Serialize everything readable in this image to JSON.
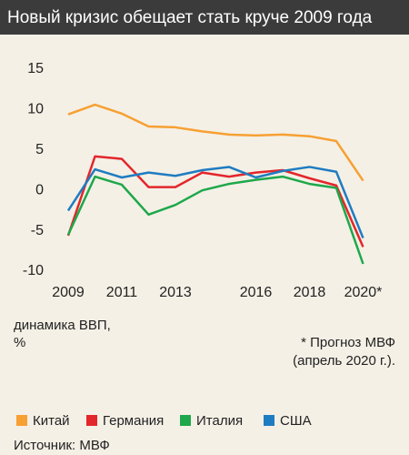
{
  "chart_data": {
    "type": "line",
    "title": "Новый кризис обещает стать круче 2009 года",
    "categories": [
      "2009",
      null,
      "2011",
      null,
      "2013",
      null,
      null,
      "2016",
      null,
      "2018",
      null,
      "2020*"
    ],
    "series": [
      {
        "name": "Китай",
        "color": "#f7a033",
        "values": [
          9.4,
          10.6,
          9.5,
          7.9,
          7.8,
          7.3,
          6.9,
          6.8,
          6.9,
          6.7,
          6.1,
          1.2
        ]
      },
      {
        "name": "Германия",
        "color": "#e3262b",
        "values": [
          -5.6,
          4.2,
          3.9,
          0.4,
          0.4,
          2.2,
          1.7,
          2.2,
          2.5,
          1.5,
          0.6,
          -7.0
        ]
      },
      {
        "name": "Италия",
        "color": "#1ea84b",
        "values": [
          -5.5,
          1.7,
          0.7,
          -3.0,
          -1.8,
          0.0,
          0.8,
          1.3,
          1.7,
          0.8,
          0.3,
          -9.1
        ]
      },
      {
        "name": "США",
        "color": "#1f7cc1",
        "values": [
          -2.5,
          2.6,
          1.6,
          2.2,
          1.8,
          2.5,
          2.9,
          1.6,
          2.4,
          2.9,
          2.3,
          -5.9
        ]
      }
    ],
    "ylim": [
      -10,
      15
    ],
    "yticks": [
      15,
      10,
      5,
      0,
      -5,
      -10
    ],
    "y_label": [
      "динамика ВВП,",
      "%"
    ],
    "note": [
      "* Прогноз МВФ",
      "(апрель 2020 г.)."
    ],
    "source": "Источник: МВФ"
  }
}
